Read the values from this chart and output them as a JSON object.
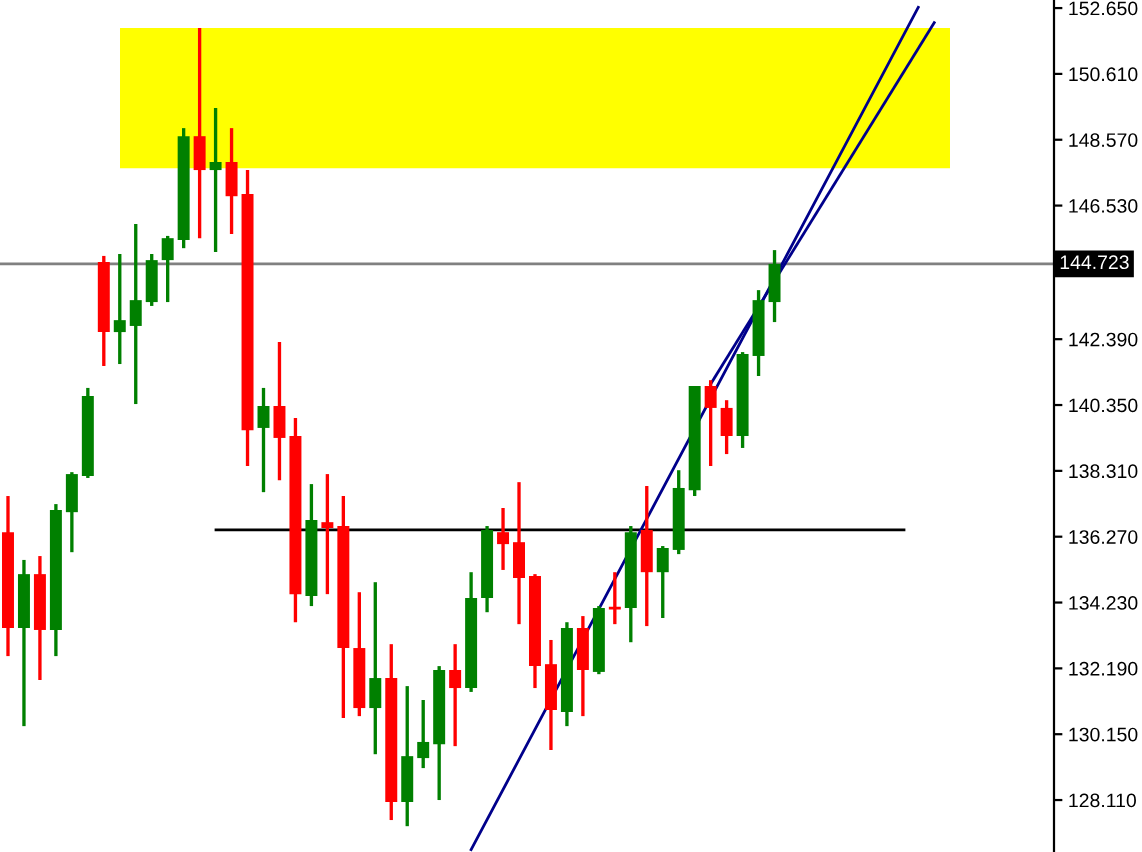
{
  "chart_data": {
    "type": "candlestick",
    "categories": [
      null,
      null,
      null,
      null,
      null,
      null,
      null,
      null,
      null,
      null,
      null,
      null,
      null,
      null,
      null,
      null,
      null,
      null,
      null,
      null,
      null,
      null,
      null,
      null,
      null,
      null,
      null,
      null,
      null,
      null,
      null,
      null,
      null,
      null,
      null,
      null,
      null,
      null,
      null,
      null,
      null,
      null,
      null,
      null,
      null,
      null,
      null,
      null,
      null,
      null,
      null,
      null,
      null,
      null,
      null,
      null,
      null,
      null,
      null,
      null,
      null,
      null,
      null,
      null,
      null,
      null
    ],
    "ohlc": [
      [
        136.41,
        137.53,
        132.57,
        133.44
      ],
      [
        133.44,
        135.55,
        130.4,
        135.11
      ],
      [
        135.11,
        135.67,
        131.83,
        133.38
      ],
      [
        133.38,
        137.28,
        132.57,
        137.1
      ],
      [
        137.03,
        138.27,
        135.79,
        138.21
      ],
      [
        138.15,
        140.88,
        138.09,
        140.63
      ],
      [
        144.78,
        144.97,
        141.56,
        142.61
      ],
      [
        142.61,
        145.03,
        141.62,
        142.98
      ],
      [
        142.8,
        145.96,
        140.38,
        143.6
      ],
      [
        143.54,
        145.03,
        143.42,
        144.84
      ],
      [
        144.84,
        145.59,
        143.54,
        145.52
      ],
      [
        145.46,
        148.93,
        145.21,
        148.68
      ],
      [
        148.68,
        152.03,
        145.52,
        147.63
      ],
      [
        147.63,
        149.55,
        145.09,
        147.88
      ],
      [
        147.88,
        148.93,
        145.65,
        146.82
      ],
      [
        146.89,
        147.63,
        138.46,
        139.57
      ],
      [
        139.64,
        140.88,
        137.65,
        140.32
      ],
      [
        140.32,
        142.3,
        138.02,
        139.33
      ],
      [
        139.39,
        139.95,
        133.62,
        134.49
      ],
      [
        134.43,
        137.9,
        134.12,
        136.79
      ],
      [
        136.72,
        138.21,
        134.49,
        136.54
      ],
      [
        136.6,
        137.53,
        130.65,
        132.82
      ],
      [
        132.82,
        134.55,
        130.71,
        130.96
      ],
      [
        130.96,
        134.86,
        129.53,
        131.89
      ],
      [
        131.89,
        132.94,
        127.49,
        128.05
      ],
      [
        128.05,
        131.64,
        127.3,
        129.47
      ],
      [
        129.41,
        131.21,
        129.1,
        129.91
      ],
      [
        129.84,
        132.26,
        128.11,
        132.14
      ],
      [
        132.14,
        132.94,
        129.78,
        131.58
      ],
      [
        131.58,
        135.17,
        131.46,
        134.37
      ],
      [
        134.37,
        136.6,
        133.93,
        136.48
      ],
      [
        136.41,
        137.16,
        135.24,
        136.04
      ],
      [
        136.1,
        137.96,
        133.56,
        134.99
      ],
      [
        135.05,
        135.11,
        131.58,
        132.26
      ],
      [
        132.32,
        133.07,
        129.66,
        130.9
      ],
      [
        130.84,
        133.62,
        130.4,
        133.44
      ],
      [
        133.44,
        133.81,
        130.71,
        132.14
      ],
      [
        132.08,
        134.12,
        132.01,
        134.06
      ],
      [
        134.06,
        135.17,
        133.56,
        134.06
      ],
      [
        134.06,
        136.6,
        133.0,
        136.41
      ],
      [
        136.48,
        137.84,
        133.5,
        135.17
      ],
      [
        135.17,
        135.98,
        133.75,
        135.92
      ],
      [
        135.86,
        138.33,
        135.73,
        137.78
      ],
      [
        137.71,
        140.94,
        137.53,
        140.94
      ],
      [
        140.94,
        141.12,
        138.46,
        140.26
      ],
      [
        140.26,
        140.5,
        138.83,
        139.39
      ],
      [
        139.39,
        141.99,
        139.02,
        141.93
      ],
      [
        141.87,
        143.91,
        141.25,
        143.6
      ],
      [
        143.54,
        145.15,
        142.92,
        144.723
      ],
      null,
      null,
      null,
      null,
      null,
      null,
      null,
      null,
      null,
      null,
      null,
      null,
      null,
      null,
      null,
      null,
      null
    ],
    "colors": [
      "#ff0000",
      "#008000",
      "#ff0000",
      "#008000",
      "#008000",
      "#008000",
      "#ff0000",
      "#008000",
      "#008000",
      "#008000",
      "#008000",
      "#008000",
      "#ff0000",
      "#008000",
      "#ff0000",
      "#ff0000",
      "#008000",
      "#ff0000",
      "#ff0000",
      "#008000",
      "#ff0000",
      "#ff0000",
      "#ff0000",
      "#008000",
      "#ff0000",
      "#008000",
      "#008000",
      "#008000",
      "#ff0000",
      "#008000",
      "#008000",
      "#ff0000",
      "#ff0000",
      "#ff0000",
      "#ff0000",
      "#008000",
      "#ff0000",
      "#008000",
      "#ff0000",
      "#008000",
      "#ff0000",
      "#008000",
      "#008000",
      "#008000",
      "#ff0000",
      "#ff0000",
      "#008000",
      "#008000",
      "#008000",
      null,
      null,
      null,
      null,
      null,
      null,
      null,
      null,
      null,
      null,
      null,
      null,
      null,
      null,
      null,
      null,
      null
    ],
    "series": [
      {
        "type": "line",
        "values": [
          null,
          null,
          null,
          null,
          null,
          null,
          null,
          null,
          null,
          null,
          null,
          null,
          null,
          null,
          null,
          null,
          null,
          null,
          null,
          null,
          null,
          null,
          null,
          null,
          null,
          null,
          null,
          null,
          null,
          126.57,
          null,
          null,
          null,
          null,
          null,
          null,
          null,
          null,
          null,
          null,
          null,
          null,
          null,
          null,
          null,
          null,
          null,
          null,
          null,
          null,
          null,
          null,
          null,
          null,
          null,
          null,
          null,
          152.67,
          null,
          null,
          null,
          null,
          null,
          null,
          null,
          null
        ],
        "color": "#00008b"
      },
      {
        "type": "line",
        "values": [
          null,
          null,
          null,
          null,
          null,
          null,
          null,
          null,
          null,
          null,
          null,
          null,
          null,
          null,
          null,
          null,
          null,
          null,
          null,
          null,
          null,
          null,
          null,
          null,
          null,
          null,
          null,
          null,
          null,
          null,
          null,
          null,
          null,
          null,
          null,
          null,
          null,
          null,
          null,
          null,
          null,
          null,
          null,
          null,
          141.0,
          null,
          null,
          null,
          null,
          null,
          null,
          null,
          null,
          null,
          null,
          null,
          null,
          null,
          152.2,
          null,
          null,
          null,
          null,
          null,
          null,
          null
        ],
        "color": "#00008b"
      }
    ],
    "ref_lines": [
      {
        "axis": "y",
        "value": 144.723,
        "label": "144.723",
        "color": "#808080"
      },
      {
        "axis": "y",
        "value": 136.48,
        "color": "#000000"
      }
    ],
    "bands": [
      {
        "axis": "y",
        "from": 147.69,
        "to": 152.03,
        "color": "#ffff00"
      }
    ],
    "ylim": [
      126.5,
      152.9
    ],
    "yticks": [
      {
        "value": 152.65,
        "label": "152.650"
      },
      {
        "value": 150.61,
        "label": "150.610"
      },
      {
        "value": 148.57,
        "label": "148.570"
      },
      {
        "value": 146.53,
        "label": "146.530"
      },
      {
        "value": 142.39,
        "label": "142.390"
      },
      {
        "value": 140.35,
        "label": "140.350"
      },
      {
        "value": 138.31,
        "label": "138.310"
      },
      {
        "value": 136.27,
        "label": "136.270"
      },
      {
        "value": 134.23,
        "label": "134.230"
      },
      {
        "value": 132.19,
        "label": "132.190"
      },
      {
        "value": 130.15,
        "label": "130.150"
      },
      {
        "value": 128.11,
        "label": "128.110"
      }
    ],
    "tick_labels": "y",
    "grid": false
  }
}
